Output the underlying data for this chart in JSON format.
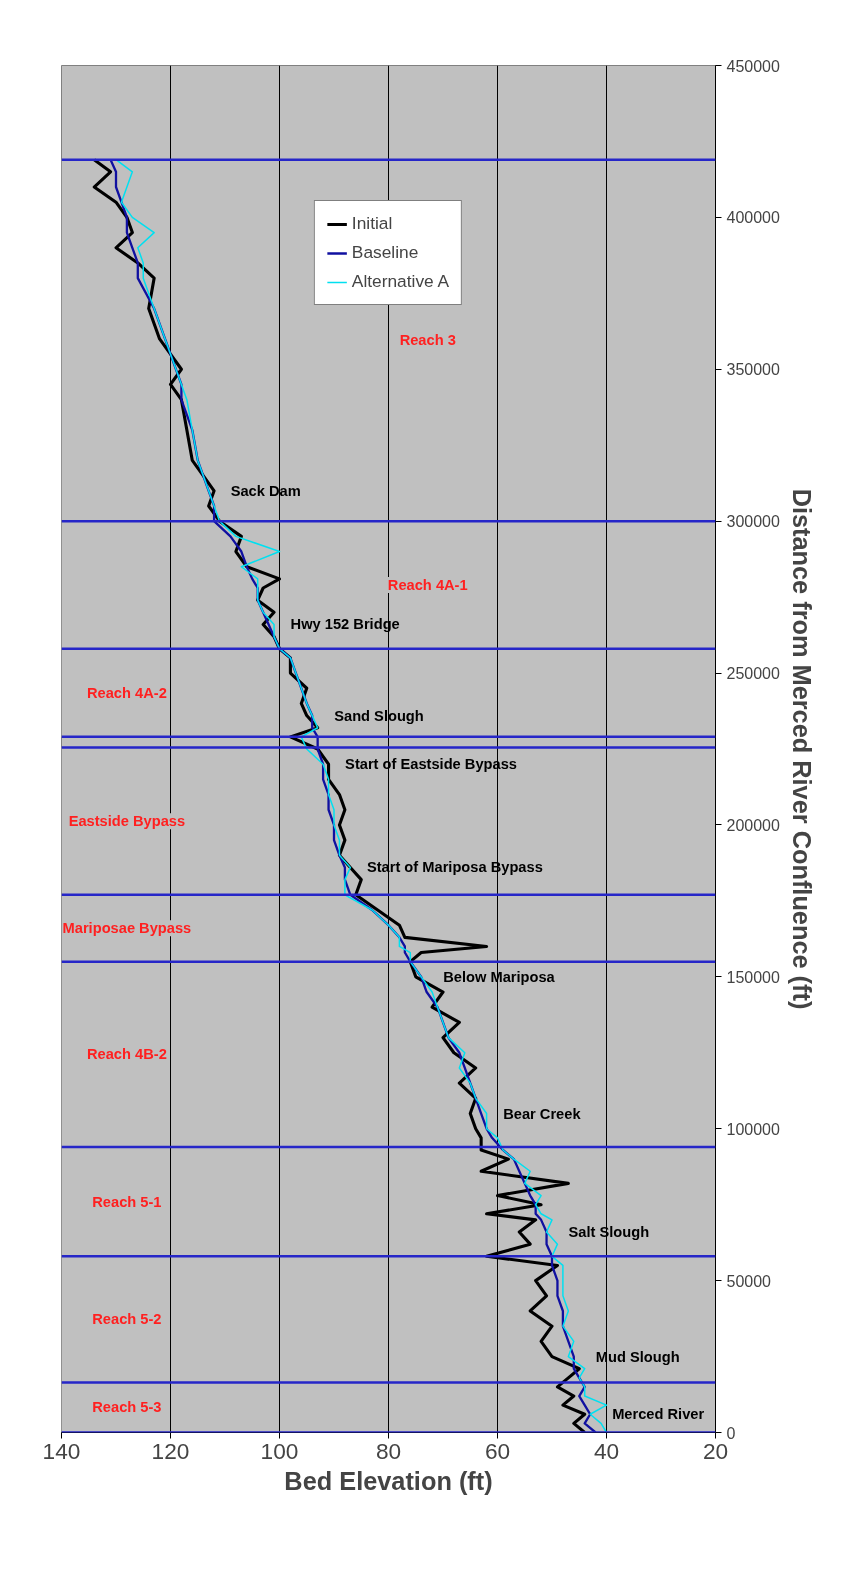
{
  "chart_data": {
    "type": "line",
    "xlabel": "Bed Elevation (ft)",
    "ylabel": "Distance from Merced River Confluence (ft)",
    "xlim": [
      140,
      20
    ],
    "xticks": [
      140,
      120,
      100,
      80,
      60,
      40,
      20
    ],
    "ylim": [
      0,
      450000
    ],
    "yticks": [
      0,
      50000,
      100000,
      150000,
      200000,
      250000,
      300000,
      350000,
      400000,
      450000
    ],
    "grid": "x",
    "legend": "top",
    "series": [
      {
        "name": "Initial",
        "color": "#000000",
        "x": [
          44,
          46,
          44,
          48,
          46,
          49,
          47,
          45,
          50,
          52,
          50,
          54,
          51,
          53,
          49,
          62,
          54,
          56,
          53,
          62,
          52,
          60,
          47,
          63,
          58,
          63,
          63,
          64,
          65,
          64,
          67,
          64,
          68,
          70,
          67,
          72,
          70,
          75,
          76,
          74,
          62,
          77,
          78,
          82,
          86,
          85,
          87,
          89,
          88,
          89,
          88,
          89,
          91,
          91,
          93,
          98,
          93,
          95,
          96,
          95,
          98,
          98,
          100,
          101,
          103,
          101,
          104,
          103,
          100,
          106,
          108,
          107,
          111,
          113,
          112,
          114,
          116,
          117,
          118,
          120,
          118,
          120,
          122,
          124,
          123,
          126,
          130,
          127,
          128,
          130,
          134,
          131,
          134
        ],
        "values": [
          0,
          3000,
          6000,
          9000,
          12000,
          15000,
          18000,
          21000,
          25000,
          30000,
          35000,
          40000,
          45000,
          50000,
          55000,
          58000,
          62000,
          66000,
          70000,
          72000,
          75000,
          78000,
          82000,
          86000,
          90000,
          93000,
          97000,
          100000,
          105000,
          110000,
          115000,
          120000,
          125000,
          130000,
          135000,
          140000,
          145000,
          150000,
          155000,
          158000,
          160000,
          163000,
          167000,
          172000,
          177000,
          182000,
          186000,
          190000,
          195000,
          200000,
          205000,
          210000,
          215000,
          220000,
          225000,
          229000,
          232000,
          236000,
          240000,
          245000,
          250000,
          255000,
          258000,
          262000,
          266000,
          270000,
          274000,
          278000,
          281000,
          285000,
          290000,
          295000,
          300000,
          305000,
          310000,
          315000,
          320000,
          330000,
          340000,
          345000,
          350000,
          355000,
          360000,
          370000,
          380000,
          385000,
          390000,
          395000,
          400000,
          405000,
          410000,
          415000,
          419000
        ]
      },
      {
        "name": "Baseline",
        "color": "#1010a0",
        "x": [
          42,
          44,
          43,
          44,
          45,
          44,
          45,
          46,
          46,
          47,
          48,
          48,
          49,
          49,
          50,
          50,
          51,
          51,
          52,
          53,
          53,
          54,
          55,
          56,
          57,
          59,
          61,
          62,
          63,
          64,
          65,
          66,
          67,
          69,
          70,
          71,
          73,
          74,
          76,
          77,
          77,
          78,
          80,
          83,
          87,
          88,
          88,
          89,
          90,
          90,
          91,
          91,
          92,
          92,
          93,
          93,
          94,
          94,
          95,
          96,
          97,
          98,
          100,
          101,
          102,
          103,
          104,
          104,
          105,
          106,
          107,
          109,
          112,
          112,
          113,
          114,
          115,
          116,
          118,
          118,
          119,
          120,
          121,
          123,
          126,
          126,
          127,
          128,
          128,
          129,
          130,
          130,
          131
        ],
        "values": [
          0,
          3000,
          6000,
          9000,
          12000,
          15000,
          18000,
          21000,
          25000,
          30000,
          35000,
          40000,
          45000,
          50000,
          55000,
          58000,
          62000,
          66000,
          70000,
          72000,
          75000,
          78000,
          82000,
          86000,
          90000,
          93000,
          97000,
          100000,
          105000,
          110000,
          115000,
          120000,
          125000,
          130000,
          135000,
          140000,
          145000,
          150000,
          155000,
          158000,
          160000,
          163000,
          167000,
          172000,
          177000,
          182000,
          186000,
          190000,
          195000,
          200000,
          205000,
          210000,
          215000,
          220000,
          225000,
          229000,
          232000,
          236000,
          240000,
          245000,
          250000,
          255000,
          258000,
          262000,
          266000,
          270000,
          274000,
          278000,
          281000,
          285000,
          290000,
          295000,
          300000,
          305000,
          310000,
          315000,
          320000,
          330000,
          340000,
          345000,
          350000,
          355000,
          360000,
          370000,
          380000,
          385000,
          390000,
          395000,
          400000,
          405000,
          410000,
          415000,
          419000
        ]
      },
      {
        "name": "Alternative A",
        "color": "#00e0f0",
        "x": [
          40,
          41,
          43,
          40,
          44,
          44,
          45,
          44,
          47,
          46,
          48,
          47,
          48,
          48,
          48,
          50,
          49,
          51,
          50,
          52,
          53,
          52,
          55,
          54,
          57,
          59,
          60,
          62,
          62,
          64,
          65,
          67,
          66,
          69,
          70,
          71,
          72,
          74,
          76,
          76,
          78,
          78,
          80,
          83,
          88,
          88,
          87,
          89,
          89,
          90,
          90,
          91,
          91,
          92,
          95,
          96,
          93,
          94,
          95,
          96,
          97,
          98,
          100,
          101,
          101,
          103,
          104,
          104,
          104,
          107,
          100,
          108,
          111,
          112,
          113,
          114,
          115,
          116,
          117,
          118,
          119,
          120,
          121,
          123,
          125,
          125,
          126,
          123,
          127,
          129,
          128,
          127,
          130
        ],
        "values": [
          0,
          3000,
          6000,
          9000,
          12000,
          15000,
          18000,
          21000,
          25000,
          30000,
          35000,
          40000,
          45000,
          50000,
          55000,
          58000,
          62000,
          66000,
          70000,
          72000,
          75000,
          78000,
          82000,
          86000,
          90000,
          93000,
          97000,
          100000,
          105000,
          110000,
          115000,
          120000,
          125000,
          130000,
          135000,
          140000,
          145000,
          150000,
          155000,
          158000,
          160000,
          163000,
          167000,
          172000,
          177000,
          182000,
          186000,
          190000,
          195000,
          200000,
          205000,
          210000,
          215000,
          220000,
          225000,
          229000,
          232000,
          236000,
          240000,
          245000,
          250000,
          255000,
          258000,
          262000,
          266000,
          270000,
          274000,
          278000,
          281000,
          285000,
          290000,
          295000,
          300000,
          305000,
          310000,
          315000,
          320000,
          330000,
          340000,
          345000,
          350000,
          355000,
          360000,
          370000,
          380000,
          385000,
          390000,
          395000,
          400000,
          405000,
          410000,
          415000,
          419000
        ]
      }
    ],
    "ref_lines": [
      {
        "axis": "y",
        "value": 0,
        "color": "#2626c8"
      },
      {
        "axis": "y",
        "value": 16500,
        "color": "#2626c8"
      },
      {
        "axis": "y",
        "value": 58000,
        "color": "#2626c8"
      },
      {
        "axis": "y",
        "value": 94000,
        "color": "#2626c8"
      },
      {
        "axis": "y",
        "value": 155000,
        "color": "#2626c8"
      },
      {
        "axis": "y",
        "value": 177000,
        "color": "#2626c8"
      },
      {
        "axis": "y",
        "value": 225500,
        "color": "#2626c8"
      },
      {
        "axis": "y",
        "value": 229000,
        "color": "#2626c8"
      },
      {
        "axis": "y",
        "value": 258000,
        "color": "#2626c8"
      },
      {
        "axis": "y",
        "value": 300000,
        "color": "#2626c8"
      },
      {
        "axis": "y",
        "value": 419000,
        "color": "#2626c8"
      }
    ],
    "bands": [
      {
        "axis": "y",
        "from": 0,
        "to": 16500,
        "label": "Reach 5-3",
        "color": "#c0c0c0"
      },
      {
        "axis": "y",
        "from": 16500,
        "to": 58000,
        "label": "Reach 5-2",
        "color": "#c0c0c0"
      },
      {
        "axis": "y",
        "from": 58000,
        "to": 94000,
        "label": "Reach 5-1",
        "color": "#c0c0c0"
      },
      {
        "axis": "y",
        "from": 94000,
        "to": 155000,
        "label": "Reach 4B-2",
        "color": "#c0c0c0"
      },
      {
        "axis": "y",
        "from": 155000,
        "to": 177000,
        "label": "Mariposae Bypass",
        "color": "#c0c0c0"
      },
      {
        "axis": "y",
        "from": 177000,
        "to": 225500,
        "label": "Eastside Bypass",
        "color": "#c0c0c0"
      },
      {
        "axis": "y",
        "from": 229000,
        "to": 258000,
        "label": "Reach 4A-2",
        "color": "#c0c0c0"
      },
      {
        "axis": "y",
        "from": 258000,
        "to": 300000,
        "label": "Reach 4A-1",
        "color": "#c0c0c0"
      },
      {
        "axis": "y",
        "from": 300000,
        "to": 419000,
        "label": "Reach 3",
        "color": "#c0c0c0"
      }
    ],
    "annotations": [
      {
        "text": "Merced River",
        "x": 43,
        "y": 6000
      },
      {
        "text": "Mud Slough",
        "x": 46,
        "y": 25000
      },
      {
        "text": "Salt Slough",
        "x": 51,
        "y": 66000
      },
      {
        "text": "Bear Creek",
        "x": 63,
        "y": 105000
      },
      {
        "text": "Below Mariposa",
        "x": 74,
        "y": 150000
      },
      {
        "text": "Start of Mariposa Bypass",
        "x": 88,
        "y": 186000
      },
      {
        "text": "Start of Eastside Bypass",
        "x": 92,
        "y": 220000
      },
      {
        "text": "Sand Slough",
        "x": 94,
        "y": 236000
      },
      {
        "text": "Hwy 152 Bridge",
        "x": 102,
        "y": 266000
      },
      {
        "text": "Sack Dam",
        "x": 113,
        "y": 310000
      }
    ]
  }
}
